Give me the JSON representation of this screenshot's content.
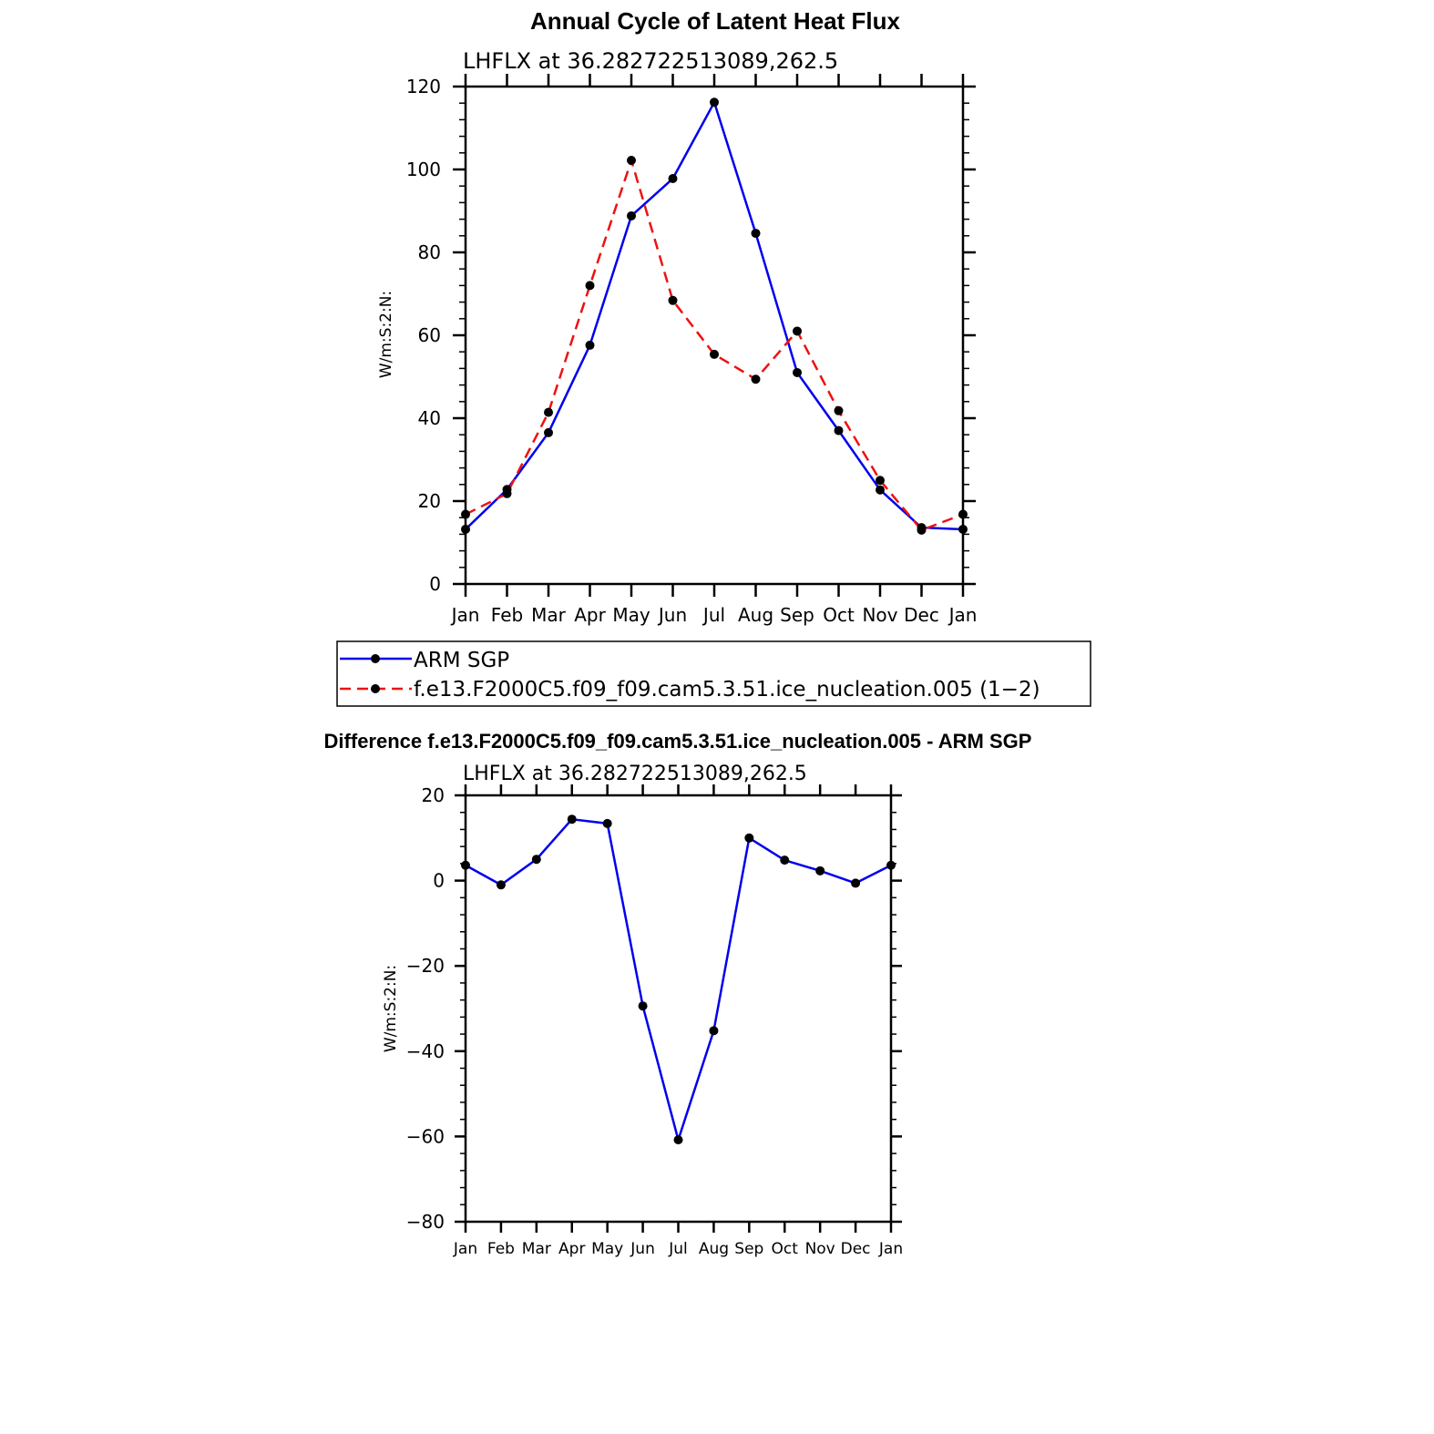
{
  "colors": {
    "obs": "#0000ee",
    "model": "#ee1111",
    "marker": "#000000",
    "axis": "#000000"
  },
  "chart_data": [
    {
      "type": "line",
      "title": "Annual Cycle of Latent Heat Flux",
      "subtitle": "LHFLX at 36.282722513089,262.5",
      "xlabel": "",
      "ylabel": "W/m:S:2:N:",
      "categories": [
        "Jan",
        "Feb",
        "Mar",
        "Apr",
        "May",
        "Jun",
        "Jul",
        "Aug",
        "Sep",
        "Oct",
        "Nov",
        "Dec",
        "Jan"
      ],
      "ylim": [
        0,
        120
      ],
      "yticks": [
        "0",
        "20",
        "40",
        "60",
        "80",
        "100",
        "120"
      ],
      "series": [
        {
          "name": "ARM SGP",
          "style": "solid",
          "color": "#0000ee",
          "values": [
            13.2,
            22.8,
            36.5,
            57.6,
            88.8,
            97.8,
            116.2,
            84.6,
            51.0,
            37.0,
            22.7,
            13.6,
            13.2
          ]
        },
        {
          "name": "f.e13.F2000C5.f09_f09.cam5.3.51.ice_nucleation.005 (1−2)",
          "style": "dashed",
          "color": "#ee1111",
          "values": [
            16.8,
            21.8,
            41.4,
            72.0,
            102.2,
            68.4,
            55.4,
            49.4,
            61.0,
            41.8,
            25.0,
            13.0,
            16.8
          ]
        }
      ],
      "legend": "below"
    },
    {
      "type": "line",
      "title": "Difference f.e13.F2000C5.f09_f09.cam5.3.51.ice_nucleation.005 - ARM SGP",
      "subtitle": "LHFLX at 36.282722513089,262.5",
      "xlabel": "",
      "ylabel": "W/m:S:2:N:",
      "categories": [
        "Jan",
        "Feb",
        "Mar",
        "Apr",
        "May",
        "Jun",
        "Jul",
        "Aug",
        "Sep",
        "Oct",
        "Nov",
        "Dec",
        "Jan"
      ],
      "ylim": [
        -80,
        20
      ],
      "yticks": [
        "−80",
        "−60",
        "−40",
        "−20",
        "0",
        "20"
      ],
      "series": [
        {
          "name": "Difference",
          "style": "solid",
          "color": "#0000ee",
          "values": [
            3.6,
            -1.0,
            5.0,
            14.4,
            13.4,
            -29.4,
            -60.8,
            -35.2,
            10.0,
            4.8,
            2.3,
            -0.6,
            3.6
          ]
        }
      ]
    }
  ]
}
